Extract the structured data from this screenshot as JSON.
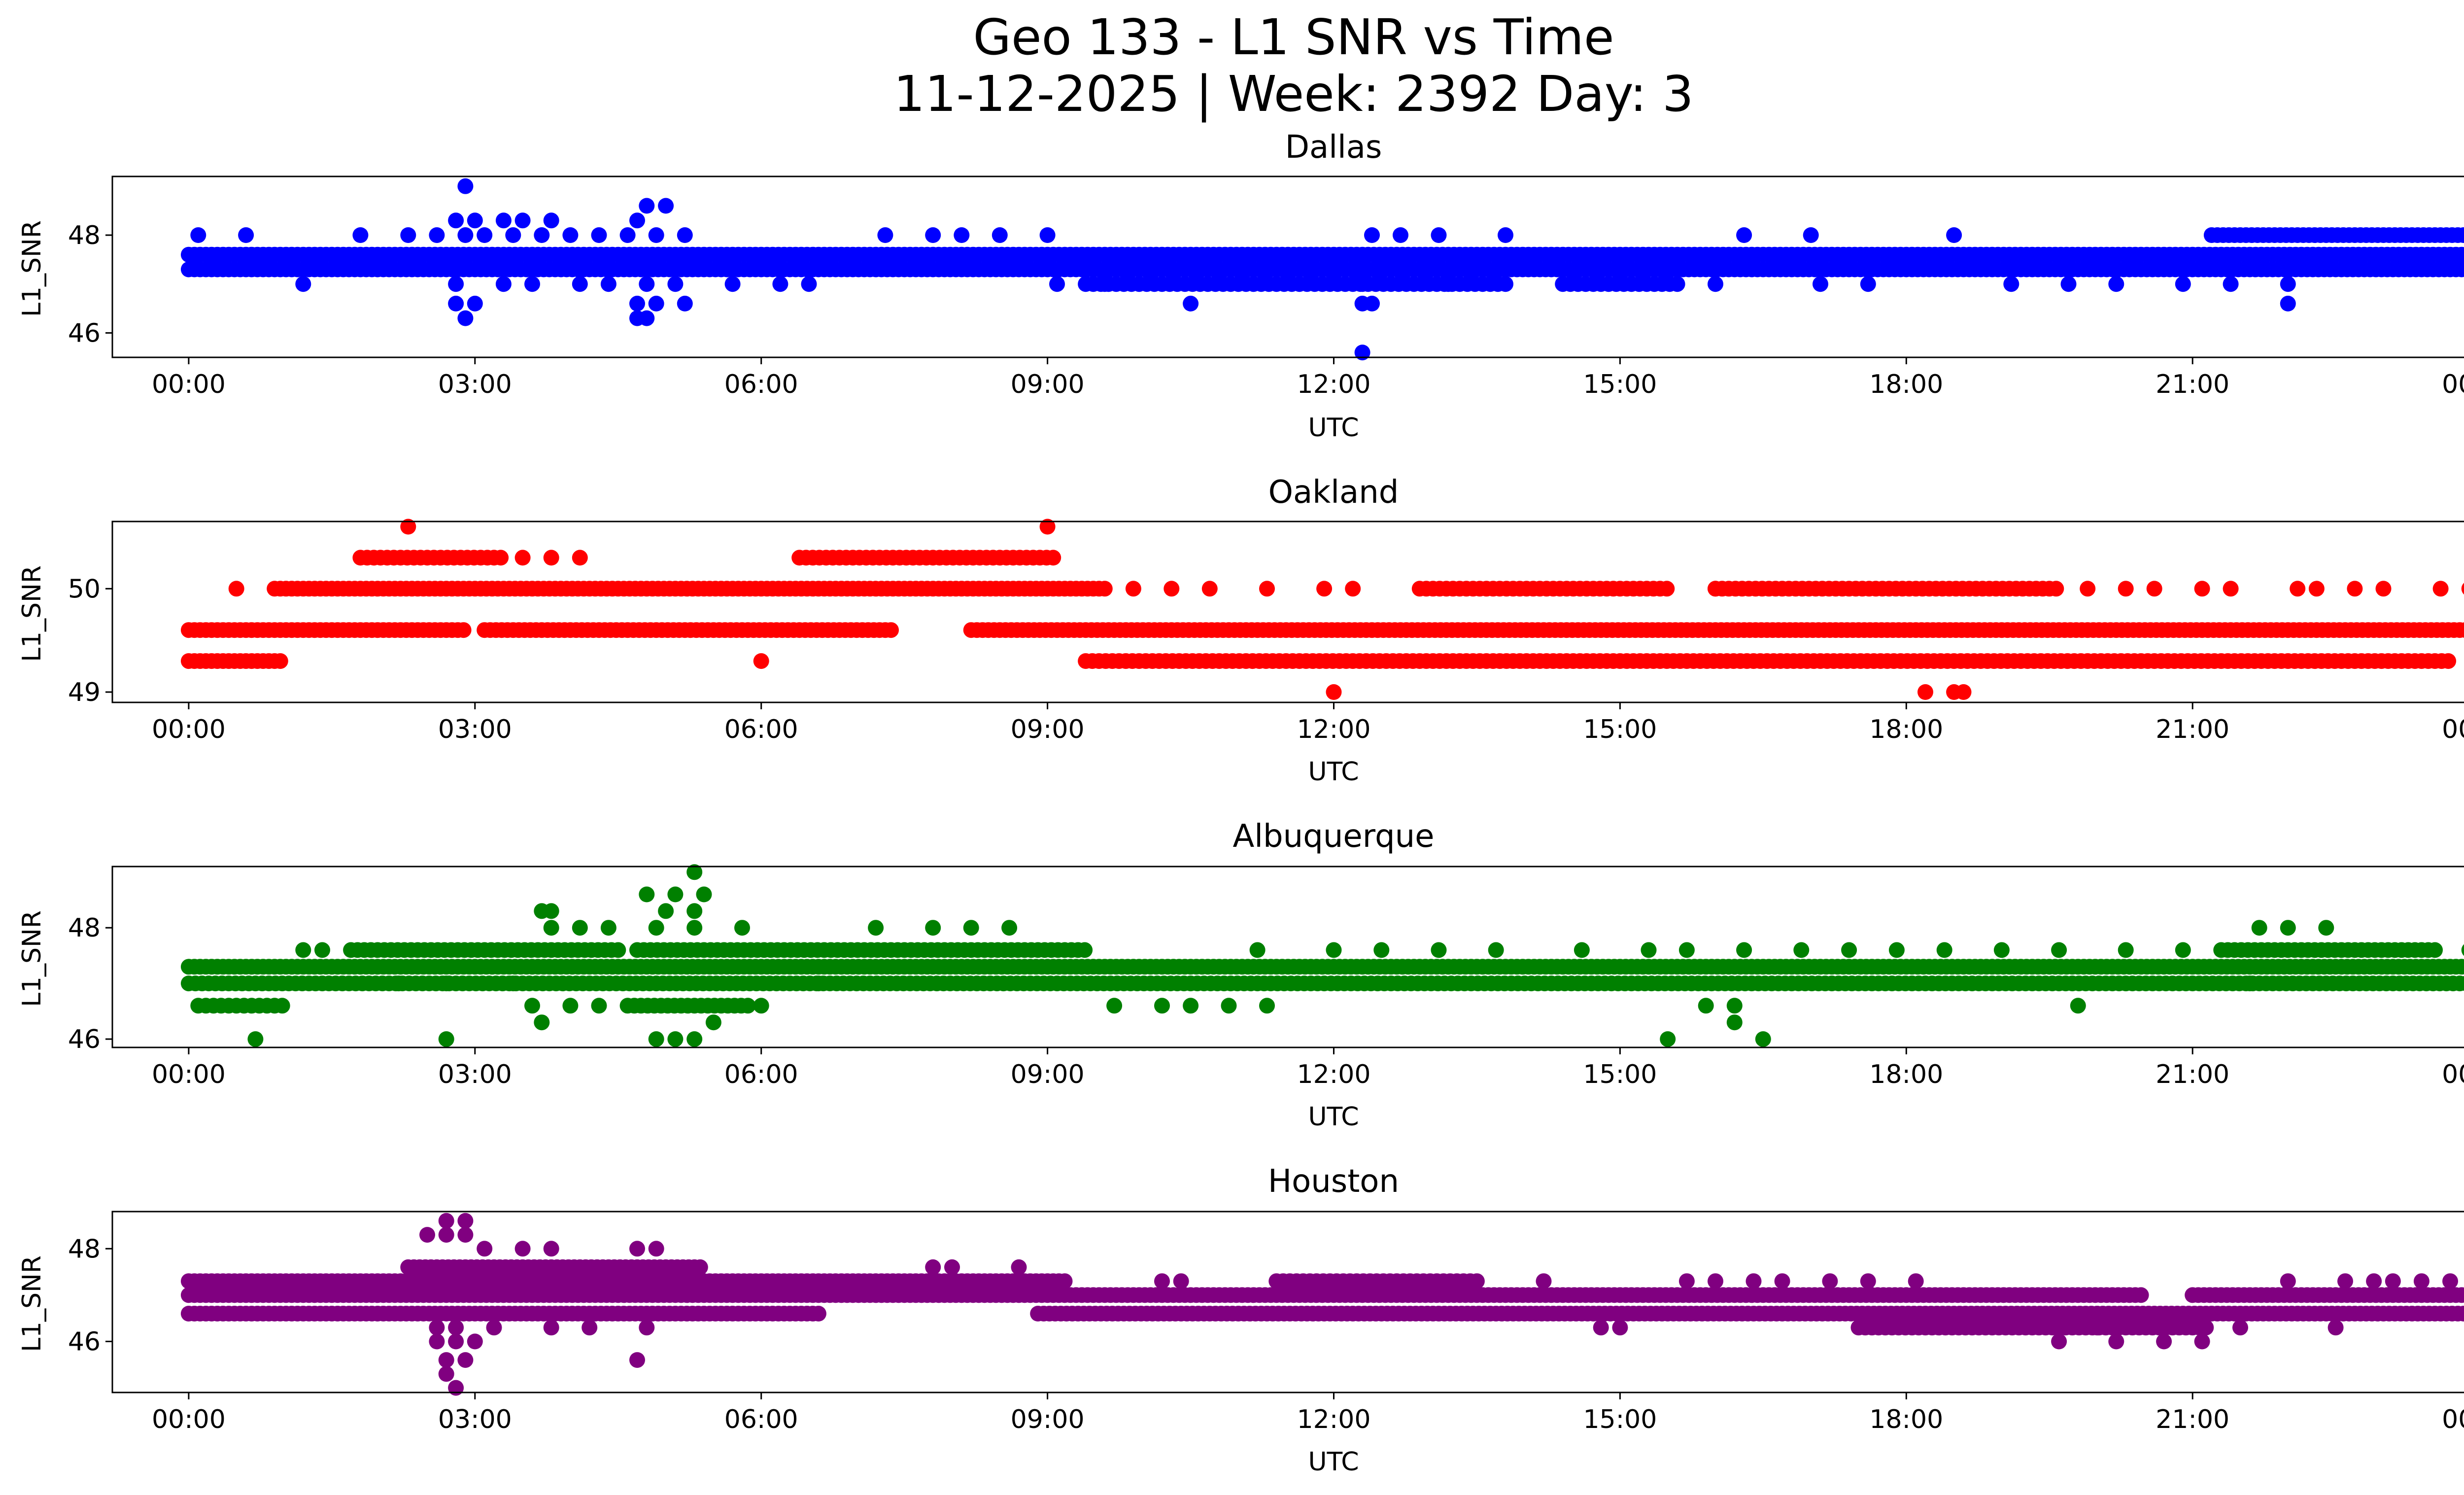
{
  "figure": {
    "title_line1": "Geo 133 - L1 SNR vs Time",
    "title_line2": "11-12-2025 | Week: 2392 Day: 3"
  },
  "chart_data": [
    {
      "type": "scatter",
      "title": "Dallas",
      "xlabel": "UTC",
      "ylabel": "L1_SNR",
      "color": "#0000ff",
      "xlim": [
        -0.8,
        24.8
      ],
      "ylim": [
        45.5,
        49.2
      ],
      "yticks": [
        46,
        48
      ],
      "xtick_labels": [
        "00:00",
        "03:00",
        "06:00",
        "09:00",
        "12:00",
        "15:00",
        "18:00",
        "21:00",
        "00:00"
      ],
      "bands": [
        {
          "y": 47.3,
          "from": 0.0,
          "to": 24.0,
          "step": 0.06
        },
        {
          "y": 47.6,
          "from": 0.0,
          "to": 24.0,
          "step": 0.06
        },
        {
          "y": 47.0,
          "from": 9.4,
          "to": 13.8,
          "step": 0.08
        },
        {
          "y": 48.0,
          "from": 21.2,
          "to": 24.0,
          "step": 0.06
        },
        {
          "y": 47.0,
          "from": 14.4,
          "to": 15.6,
          "step": 0.08
        }
      ],
      "points": [
        [
          2.9,
          49.0
        ],
        [
          4.8,
          48.6
        ],
        [
          5.0,
          48.6
        ],
        [
          4.7,
          48.3
        ],
        [
          2.8,
          48.3
        ],
        [
          3.0,
          48.3
        ],
        [
          3.3,
          48.3
        ],
        [
          3.5,
          48.3
        ],
        [
          3.8,
          48.3
        ],
        [
          2.6,
          48.0
        ],
        [
          2.9,
          48.0
        ],
        [
          3.1,
          48.0
        ],
        [
          3.4,
          48.0
        ],
        [
          3.7,
          48.0
        ],
        [
          4.0,
          48.0
        ],
        [
          4.3,
          48.0
        ],
        [
          4.6,
          48.0
        ],
        [
          4.9,
          48.0
        ],
        [
          5.2,
          48.0
        ],
        [
          0.1,
          48.0
        ],
        [
          0.6,
          48.0
        ],
        [
          1.8,
          48.0
        ],
        [
          2.3,
          48.0
        ],
        [
          7.3,
          48.0
        ],
        [
          7.8,
          48.0
        ],
        [
          8.1,
          48.0
        ],
        [
          8.5,
          48.0
        ],
        [
          9.0,
          48.0
        ],
        [
          12.4,
          48.0
        ],
        [
          12.7,
          48.0
        ],
        [
          13.1,
          48.0
        ],
        [
          13.8,
          48.0
        ],
        [
          16.3,
          48.0
        ],
        [
          17.0,
          48.0
        ],
        [
          18.5,
          48.0
        ],
        [
          2.8,
          47.0
        ],
        [
          3.3,
          47.0
        ],
        [
          3.6,
          47.0
        ],
        [
          4.1,
          47.0
        ],
        [
          4.4,
          47.0
        ],
        [
          4.8,
          47.0
        ],
        [
          5.1,
          47.0
        ],
        [
          5.7,
          47.0
        ],
        [
          6.2,
          47.0
        ],
        [
          6.5,
          47.0
        ],
        [
          1.2,
          47.0
        ],
        [
          9.1,
          47.0
        ],
        [
          9.6,
          47.0
        ],
        [
          12.3,
          47.0
        ],
        [
          13.2,
          47.0
        ],
        [
          16.0,
          47.0
        ],
        [
          17.1,
          47.0
        ],
        [
          17.6,
          47.0
        ],
        [
          19.1,
          47.0
        ],
        [
          19.7,
          47.0
        ],
        [
          20.2,
          47.0
        ],
        [
          20.9,
          47.0
        ],
        [
          21.4,
          47.0
        ],
        [
          22.0,
          47.0
        ],
        [
          2.8,
          46.6
        ],
        [
          3.0,
          46.6
        ],
        [
          4.7,
          46.6
        ],
        [
          4.9,
          46.6
        ],
        [
          5.2,
          46.6
        ],
        [
          10.5,
          46.6
        ],
        [
          12.3,
          46.6
        ],
        [
          12.4,
          46.6
        ],
        [
          22.0,
          46.6
        ],
        [
          2.9,
          46.3
        ],
        [
          4.7,
          46.3
        ],
        [
          4.8,
          46.3
        ],
        [
          12.3,
          45.6
        ]
      ]
    },
    {
      "type": "scatter",
      "title": "Oakland",
      "xlabel": "UTC",
      "ylabel": "L1_SNR",
      "color": "#ff0000",
      "xlim": [
        -0.8,
        24.8
      ],
      "ylim": [
        48.9,
        50.65
      ],
      "yticks": [
        49,
        50
      ],
      "xtick_labels": [
        "00:00",
        "03:00",
        "06:00",
        "09:00",
        "12:00",
        "15:00",
        "18:00",
        "21:00",
        "00:00"
      ],
      "bands": [
        {
          "y": 49.6,
          "from": 0.0,
          "to": 2.9,
          "step": 0.06
        },
        {
          "y": 49.6,
          "from": 3.1,
          "to": 7.4,
          "step": 0.06
        },
        {
          "y": 49.6,
          "from": 8.2,
          "to": 24.0,
          "step": 0.06
        },
        {
          "y": 49.3,
          "from": 0.0,
          "to": 1.0,
          "step": 0.06
        },
        {
          "y": 49.3,
          "from": 9.4,
          "to": 23.7,
          "step": 0.07
        },
        {
          "y": 50.0,
          "from": 0.9,
          "to": 9.6,
          "step": 0.06
        },
        {
          "y": 50.0,
          "from": 12.9,
          "to": 15.5,
          "step": 0.07
        },
        {
          "y": 50.0,
          "from": 16.0,
          "to": 19.6,
          "step": 0.07
        },
        {
          "y": 50.3,
          "from": 1.8,
          "to": 3.3,
          "step": 0.07
        },
        {
          "y": 50.3,
          "from": 6.4,
          "to": 9.1,
          "step": 0.07
        }
      ],
      "points": [
        [
          0.5,
          50.0
        ],
        [
          9.9,
          50.0
        ],
        [
          10.3,
          50.0
        ],
        [
          10.7,
          50.0
        ],
        [
          11.3,
          50.0
        ],
        [
          11.9,
          50.0
        ],
        [
          12.2,
          50.0
        ],
        [
          16.0,
          50.0
        ],
        [
          19.9,
          50.0
        ],
        [
          20.3,
          50.0
        ],
        [
          20.6,
          50.0
        ],
        [
          21.1,
          50.0
        ],
        [
          21.4,
          50.0
        ],
        [
          22.1,
          50.0
        ],
        [
          22.3,
          50.0
        ],
        [
          22.7,
          50.0
        ],
        [
          23.0,
          50.0
        ],
        [
          23.6,
          50.0
        ],
        [
          23.9,
          50.0
        ],
        [
          3.5,
          50.3
        ],
        [
          3.8,
          50.3
        ],
        [
          4.1,
          50.3
        ],
        [
          2.3,
          50.6
        ],
        [
          9.0,
          50.6
        ],
        [
          6.0,
          49.3
        ],
        [
          12.0,
          49.0
        ],
        [
          18.2,
          49.0
        ],
        [
          18.5,
          49.0
        ],
        [
          18.6,
          49.0
        ]
      ]
    },
    {
      "type": "scatter",
      "title": "Albuquerque",
      "xlabel": "UTC",
      "ylabel": "L1_SNR",
      "color": "#008000",
      "xlim": [
        -0.8,
        24.8
      ],
      "ylim": [
        45.85,
        49.1
      ],
      "yticks": [
        46,
        48
      ],
      "xtick_labels": [
        "00:00",
        "03:00",
        "06:00",
        "09:00",
        "12:00",
        "15:00",
        "18:00",
        "21:00",
        "00:00"
      ],
      "bands": [
        {
          "y": 47.3,
          "from": 0.0,
          "to": 24.0,
          "step": 0.06
        },
        {
          "y": 47.0,
          "from": 0.0,
          "to": 24.0,
          "step": 0.07
        },
        {
          "y": 47.6,
          "from": 1.7,
          "to": 4.5,
          "step": 0.07
        },
        {
          "y": 47.6,
          "from": 4.7,
          "to": 9.4,
          "step": 0.07
        },
        {
          "y": 47.6,
          "from": 21.3,
          "to": 23.6,
          "step": 0.07
        },
        {
          "y": 46.6,
          "from": 0.1,
          "to": 1.0,
          "step": 0.08
        },
        {
          "y": 46.6,
          "from": 4.6,
          "to": 5.9,
          "step": 0.07
        }
      ],
      "points": [
        [
          0.7,
          46.0
        ],
        [
          2.7,
          46.0
        ],
        [
          4.9,
          46.0
        ],
        [
          5.1,
          46.0
        ],
        [
          5.3,
          46.0
        ],
        [
          15.5,
          46.0
        ],
        [
          16.5,
          46.0
        ],
        [
          3.7,
          46.3
        ],
        [
          5.5,
          46.3
        ],
        [
          16.2,
          46.3
        ],
        [
          3.6,
          46.6
        ],
        [
          4.0,
          46.6
        ],
        [
          4.3,
          46.6
        ],
        [
          6.0,
          46.6
        ],
        [
          9.7,
          46.6
        ],
        [
          10.2,
          46.6
        ],
        [
          10.5,
          46.6
        ],
        [
          10.9,
          46.6
        ],
        [
          11.3,
          46.6
        ],
        [
          15.9,
          46.6
        ],
        [
          16.2,
          46.6
        ],
        [
          19.8,
          46.6
        ],
        [
          3.7,
          48.3
        ],
        [
          3.8,
          48.3
        ],
        [
          4.8,
          48.6
        ],
        [
          5.1,
          48.6
        ],
        [
          5.4,
          48.6
        ],
        [
          5.0,
          48.3
        ],
        [
          5.3,
          48.3
        ],
        [
          5.3,
          49.0
        ],
        [
          3.8,
          48.0
        ],
        [
          4.1,
          48.0
        ],
        [
          4.4,
          48.0
        ],
        [
          4.9,
          48.0
        ],
        [
          5.3,
          48.0
        ],
        [
          5.8,
          48.0
        ],
        [
          7.2,
          48.0
        ],
        [
          7.8,
          48.0
        ],
        [
          8.2,
          48.0
        ],
        [
          8.6,
          48.0
        ],
        [
          21.7,
          48.0
        ],
        [
          22.0,
          48.0
        ],
        [
          22.4,
          48.0
        ],
        [
          1.2,
          47.6
        ],
        [
          1.4,
          47.6
        ],
        [
          11.2,
          47.6
        ],
        [
          12.0,
          47.6
        ],
        [
          12.5,
          47.6
        ],
        [
          13.1,
          47.6
        ],
        [
          13.7,
          47.6
        ],
        [
          14.6,
          47.6
        ],
        [
          15.3,
          47.6
        ],
        [
          15.7,
          47.6
        ],
        [
          16.3,
          47.6
        ],
        [
          16.9,
          47.6
        ],
        [
          17.4,
          47.6
        ],
        [
          17.9,
          47.6
        ],
        [
          18.4,
          47.6
        ],
        [
          19.0,
          47.6
        ],
        [
          19.6,
          47.6
        ],
        [
          20.3,
          47.6
        ],
        [
          20.9,
          47.6
        ],
        [
          23.9,
          47.6
        ],
        [
          2.2,
          47.0
        ],
        [
          2.7,
          47.0
        ],
        [
          3.4,
          47.0
        ],
        [
          6.6,
          47.0
        ],
        [
          21.6,
          47.0
        ]
      ]
    },
    {
      "type": "scatter",
      "title": "Houston",
      "xlabel": "UTC",
      "ylabel": "L1_SNR",
      "color": "#800080",
      "xlim": [
        -0.8,
        24.8
      ],
      "ylim": [
        44.9,
        48.8
      ],
      "yticks": [
        46,
        48
      ],
      "xtick_labels": [
        "00:00",
        "03:00",
        "06:00",
        "09:00",
        "12:00",
        "15:00",
        "18:00",
        "21:00",
        "00:00"
      ],
      "bands": [
        {
          "y": 46.6,
          "from": 0.0,
          "to": 6.6,
          "step": 0.06
        },
        {
          "y": 46.6,
          "from": 8.9,
          "to": 24.0,
          "step": 0.06
        },
        {
          "y": 47.0,
          "from": 0.0,
          "to": 20.5,
          "step": 0.06
        },
        {
          "y": 47.0,
          "from": 21.0,
          "to": 24.0,
          "step": 0.06
        },
        {
          "y": 47.3,
          "from": 0.0,
          "to": 9.2,
          "step": 0.06
        },
        {
          "y": 47.3,
          "from": 11.4,
          "to": 13.5,
          "step": 0.07
        },
        {
          "y": 47.6,
          "from": 2.3,
          "to": 5.4,
          "step": 0.06
        },
        {
          "y": 46.3,
          "from": 17.5,
          "to": 21.2,
          "step": 0.07
        }
      ],
      "points": [
        [
          2.5,
          48.3
        ],
        [
          2.7,
          48.6
        ],
        [
          2.9,
          48.6
        ],
        [
          2.7,
          48.3
        ],
        [
          2.9,
          48.3
        ],
        [
          3.1,
          48.0
        ],
        [
          3.5,
          48.0
        ],
        [
          3.8,
          48.0
        ],
        [
          4.7,
          48.0
        ],
        [
          4.9,
          48.0
        ],
        [
          2.6,
          46.3
        ],
        [
          2.8,
          46.3
        ],
        [
          3.2,
          46.3
        ],
        [
          3.8,
          46.3
        ],
        [
          4.2,
          46.3
        ],
        [
          4.8,
          46.3
        ],
        [
          2.6,
          46.0
        ],
        [
          2.8,
          46.0
        ],
        [
          3.0,
          46.0
        ],
        [
          4.7,
          45.6
        ],
        [
          2.7,
          45.6
        ],
        [
          2.9,
          45.6
        ],
        [
          2.7,
          45.3
        ],
        [
          2.8,
          45.0
        ],
        [
          7.8,
          47.6
        ],
        [
          8.0,
          47.6
        ],
        [
          8.7,
          47.6
        ],
        [
          10.2,
          47.3
        ],
        [
          10.4,
          47.3
        ],
        [
          14.2,
          47.3
        ],
        [
          15.7,
          47.3
        ],
        [
          16.0,
          47.3
        ],
        [
          16.4,
          47.3
        ],
        [
          16.7,
          47.3
        ],
        [
          17.2,
          47.3
        ],
        [
          17.6,
          47.3
        ],
        [
          18.1,
          47.3
        ],
        [
          22.0,
          47.3
        ],
        [
          22.6,
          47.3
        ],
        [
          22.9,
          47.3
        ],
        [
          23.1,
          47.3
        ],
        [
          23.4,
          47.3
        ],
        [
          23.7,
          47.3
        ],
        [
          14.8,
          46.3
        ],
        [
          15.0,
          46.3
        ],
        [
          22.5,
          46.3
        ],
        [
          21.5,
          46.3
        ],
        [
          19.6,
          46.0
        ],
        [
          20.2,
          46.0
        ],
        [
          20.7,
          46.0
        ],
        [
          21.1,
          46.0
        ],
        [
          20.0,
          46.3
        ]
      ]
    }
  ]
}
